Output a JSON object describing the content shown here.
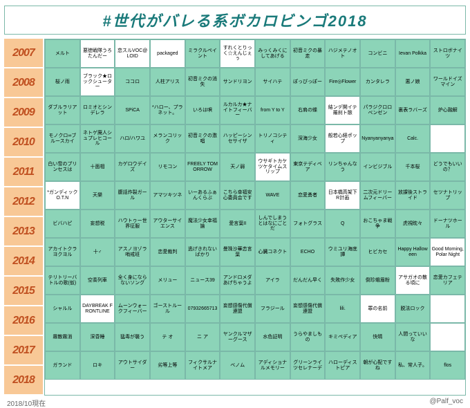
{
  "title": "#世代がバレる系ボカロビンゴ2018",
  "colors": {
    "marked": "#8cd4b8",
    "unmarked": "#ffffff",
    "year_bg": "#f8c896",
    "year_text": "#c05020",
    "border": "#7ab8a8",
    "title_color": "#1a7a7a"
  },
  "years": [
    "2007",
    "2008",
    "2009",
    "2010",
    "2011",
    "2012",
    "2013",
    "2014",
    "2015",
    "2016",
    "2017",
    "2018"
  ],
  "grid": [
    [
      {
        "t": "メルト",
        "m": true
      },
      {
        "t": "悪徳戦隊うろたんだー",
        "m": false
      },
      {
        "t": "恋スルVOC@LOID",
        "m": false
      },
      {
        "t": "packaged",
        "m": false
      },
      {
        "t": "ミラクルペイント",
        "m": true
      },
      {
        "t": "すれくとりっく☆えんじぇぅ",
        "m": false
      },
      {
        "t": "みっくみくにしてあげる",
        "m": true
      },
      {
        "t": "初音ミクの暴走",
        "m": true
      },
      {
        "t": "ハジメテノオト",
        "m": true
      },
      {
        "t": "コンビニ",
        "m": true
      },
      {
        "t": "Ievan Polkka",
        "m": true
      },
      {
        "t": "ストロボナイツ",
        "m": true
      }
    ],
    [
      {
        "t": "桜ノ雨",
        "m": true
      },
      {
        "t": "ブラック★ロックシューター",
        "m": false
      },
      {
        "t": "ココロ",
        "m": true
      },
      {
        "t": "人柱アリス",
        "m": true
      },
      {
        "t": "初音ミクの消失",
        "m": true
      },
      {
        "t": "サンドリヨン",
        "m": true
      },
      {
        "t": "サイハテ",
        "m": true
      },
      {
        "t": "ぽっぴっぽー",
        "m": true
      },
      {
        "t": "Fire◎Flower",
        "m": true
      },
      {
        "t": "カンタレラ",
        "m": true
      },
      {
        "t": "悪ノ娘",
        "m": true
      },
      {
        "t": "ワールドイズマイン",
        "m": true
      }
    ],
    [
      {
        "t": "ダブルラリアット",
        "m": true
      },
      {
        "t": "ロミオとシンデレラ",
        "m": true
      },
      {
        "t": "SPiCA",
        "m": true
      },
      {
        "t": "*ハロー、プラネット。",
        "m": true
      },
      {
        "t": "いろは唄",
        "m": true
      },
      {
        "t": "ルカルカ★ナイトフィーバー",
        "m": true
      },
      {
        "t": "from Y to Y",
        "m": true
      },
      {
        "t": "右肩の蝶",
        "m": true
      },
      {
        "t": "結ンデ開イテ羅刹ト骸",
        "m": false
      },
      {
        "t": "パラジクロロベンゼン",
        "m": true
      },
      {
        "t": "裏表ラバーズ",
        "m": true
      },
      {
        "t": "炉心融解",
        "m": true
      }
    ],
    [
      {
        "t": "モノクロ∞ブルースカイ",
        "m": true
      },
      {
        "t": "ネトゲ廃人シュプレヒコール",
        "m": true
      },
      {
        "t": "ハロ/ハワユ",
        "m": true
      },
      {
        "t": "メランコリック",
        "m": true
      },
      {
        "t": "初音ミクの激唱",
        "m": true
      },
      {
        "t": "ハッピーシンセサイザ",
        "m": true
      },
      {
        "t": "トリノコシティ",
        "m": true
      },
      {
        "t": "深海少女",
        "m": true
      },
      {
        "t": "般若心経ポップ",
        "m": false
      },
      {
        "t": "Nyanyanyanya",
        "m": true
      },
      {
        "t": "Calc.",
        "m": true
      },
      {
        "t": "",
        "m": false
      }
    ],
    [
      {
        "t": "白い雪のプリンセスは",
        "m": true
      },
      {
        "t": "十面相",
        "m": true
      },
      {
        "t": "カゲロウデイズ",
        "m": true
      },
      {
        "t": "リモコン",
        "m": true
      },
      {
        "t": "FREELY TOMORROW",
        "m": true
      },
      {
        "t": "天ノ弱",
        "m": true
      },
      {
        "t": "ウサギトカケツケタイムスリップ",
        "m": false
      },
      {
        "t": "東京テディベア",
        "m": true
      },
      {
        "t": "リンちゃんなう",
        "m": true
      },
      {
        "t": "インビジブル",
        "m": true
      },
      {
        "t": "千本桜",
        "m": true
      },
      {
        "t": "どうでもいいの？",
        "m": true
      }
    ],
    [
      {
        "t": "*ガンディックO.T.N",
        "m": false
      },
      {
        "t": "天樂",
        "m": true
      },
      {
        "t": "腹話炸裂ガール",
        "m": true
      },
      {
        "t": "アマツキツネ",
        "m": true
      },
      {
        "t": "いーあるふぁんくらぶ",
        "m": true
      },
      {
        "t": "こちら幸福安心委員会です",
        "m": true
      },
      {
        "t": "WAVE",
        "m": true
      },
      {
        "t": "恋愛勇者",
        "m": true
      },
      {
        "t": "日本橋高架下R計画",
        "m": false
      },
      {
        "t": "二次元ドリームフィーバー",
        "m": true
      },
      {
        "t": "放課後ストライド",
        "m": true
      },
      {
        "t": "セツナトリップ",
        "m": true
      }
    ],
    [
      {
        "t": "ビバハピ",
        "m": true
      },
      {
        "t": "妄想税",
        "m": true
      },
      {
        "t": "ハウトゥー世界征服",
        "m": true
      },
      {
        "t": "アウターサイエンス",
        "m": true
      },
      {
        "t": "魔法少女幸福論",
        "m": true
      },
      {
        "t": "愛言葉II",
        "m": true
      },
      {
        "t": "しんでしまうとはなにごとだ",
        "m": true
      },
      {
        "t": "フォトグラス",
        "m": true
      },
      {
        "t": "Q",
        "m": true
      },
      {
        "t": "おこちゃま戦争",
        "m": true
      },
      {
        "t": "虎視眈々",
        "m": true
      },
      {
        "t": "ドーナツホール",
        "m": true
      }
    ],
    [
      {
        "t": "アカイトクラヨクヨル",
        "m": true
      },
      {
        "t": "十♂",
        "m": true
      },
      {
        "t": "アスノヨゾラ哨戒班",
        "m": true
      },
      {
        "t": "恋愛裁判",
        "m": true
      },
      {
        "t": "逃げきれないばかり",
        "m": true
      },
      {
        "t": "曼珠沙華恋言葉",
        "m": true
      },
      {
        "t": "心臓コネクト",
        "m": true
      },
      {
        "t": "ECHO",
        "m": true
      },
      {
        "t": "ウミユリ海底譚",
        "m": true
      },
      {
        "t": "ヒビカセ",
        "m": true
      },
      {
        "t": "Happy Halloween",
        "m": true
      },
      {
        "t": "Good Morning, Polar Night",
        "m": false
      }
    ],
    [
      {
        "t": "テリトリーバトルの歌(仮)",
        "m": true
      },
      {
        "t": "空奏列車",
        "m": true
      },
      {
        "t": "全く身にならないソング",
        "m": true
      },
      {
        "t": "メリュー",
        "m": true
      },
      {
        "t": "ニュース39",
        "m": true
      },
      {
        "t": "アンドロメダあげちゃうよ",
        "m": true
      },
      {
        "t": "アイラ",
        "m": true
      },
      {
        "t": "だんだん早く",
        "m": true
      },
      {
        "t": "失敗作少女",
        "m": true
      },
      {
        "t": "倒珍蛾眉粉",
        "m": true
      },
      {
        "t": "アサガオの散る頃に",
        "m": false
      },
      {
        "t": "恋愛カフェテリア",
        "m": true
      }
    ],
    [
      {
        "t": "シャルル",
        "m": true
      },
      {
        "t": "DAYBREAK FRONTLINE",
        "m": false
      },
      {
        "t": "ムーンウォークフィーバー",
        "m": true
      },
      {
        "t": "ゴーストルール",
        "m": true
      },
      {
        "t": "07932665713",
        "m": true
      },
      {
        "t": "妄想感傷代償連盟",
        "m": true
      },
      {
        "t": "フラジール",
        "m": true
      },
      {
        "t": "妄想感傷代償連盟",
        "m": true
      },
      {
        "t": "lili.",
        "m": true
      },
      {
        "t": "罪の名前",
        "m": false
      },
      {
        "t": "脱法ロック",
        "m": true
      },
      {
        "t": "",
        "m": false
      }
    ],
    [
      {
        "t": "霧散霧消",
        "m": true
      },
      {
        "t": "深昏睡",
        "m": true
      },
      {
        "t": "猛毒が襲う",
        "m": true
      },
      {
        "t": "テ オ",
        "m": true
      },
      {
        "t": "ニ ア",
        "m": true
      },
      {
        "t": "ヤンクルマザーグース",
        "m": true
      },
      {
        "t": "水色証明",
        "m": true
      },
      {
        "t": "うらやましもの",
        "m": true
      },
      {
        "t": "キミペディア",
        "m": true
      },
      {
        "t": "快晴",
        "m": true
      },
      {
        "t": "人間っていいな",
        "m": true
      },
      {
        "t": "",
        "m": false
      }
    ],
    [
      {
        "t": "ガランド",
        "m": true
      },
      {
        "t": "ロキ",
        "m": true
      },
      {
        "t": "アウトサイダー",
        "m": true
      },
      {
        "t": "劣等上等",
        "m": true
      },
      {
        "t": "フィクサルナイトメア",
        "m": true
      },
      {
        "t": "ベノム",
        "m": true
      },
      {
        "t": "アディショナルメモリー",
        "m": true
      },
      {
        "t": "グリーンライツセレナーデ",
        "m": true
      },
      {
        "t": "ハローディストピア",
        "m": true
      },
      {
        "t": "朝が心配ですね",
        "m": true
      },
      {
        "t": "私、常人子。",
        "m": true
      },
      {
        "t": "flos",
        "m": true
      }
    ]
  ],
  "footer_left": "2018/10現在",
  "footer_right": "@Palf_voc"
}
